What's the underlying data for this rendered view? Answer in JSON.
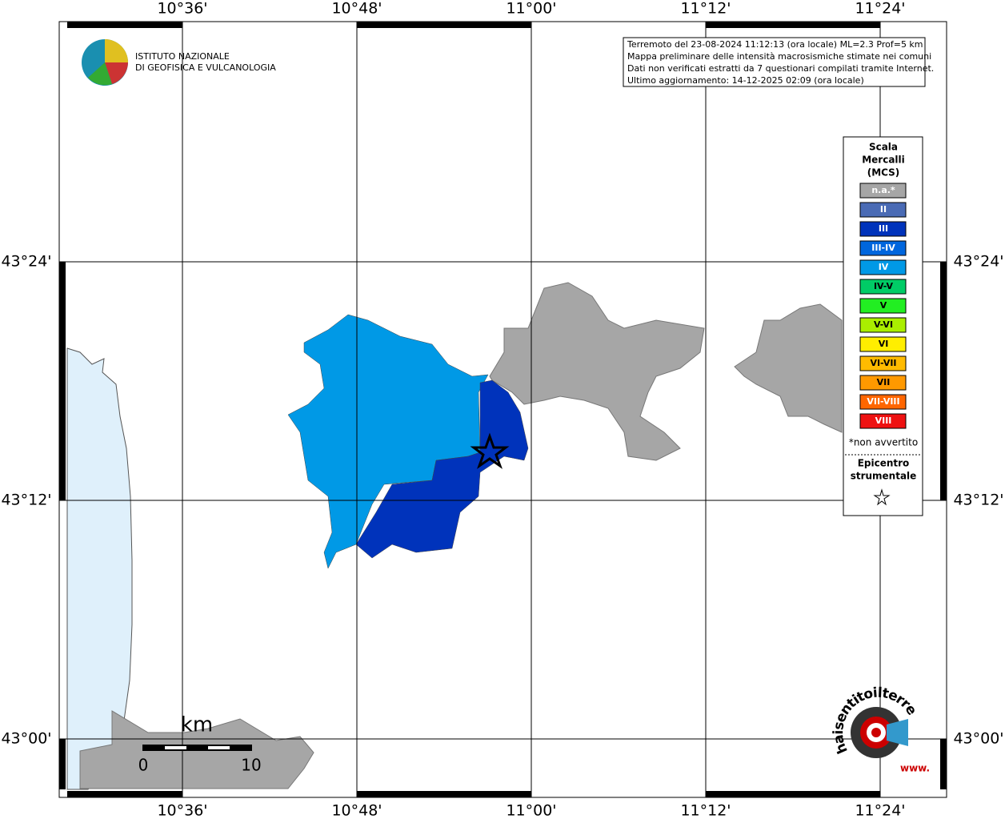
{
  "grid": {
    "lon_labels": [
      "10°36'",
      "10°48'",
      "11°00'",
      "11°12'",
      "11°24'"
    ],
    "lat_labels": [
      "43°24'",
      "43°12'",
      "43°00'"
    ]
  },
  "logo": {
    "line1": "ISTITUTO NAZIONALE",
    "line2": "DI GEOFISICA E VULCANOLOGIA"
  },
  "info": [
    "Terremoto del 23-08-2024 11:12:13 (ora locale) ML=2.3 Prof=5 km",
    "Mappa preliminare delle intensità macrosismiche stimate nei comuni",
    "Dati non verificati estratti da 7 questionari compilati tramite Internet.",
    "Ultimo aggiornamento: 14-12-2025 02:09 (ora locale)"
  ],
  "legend": {
    "title": [
      "Scala",
      "Mercalli",
      "(MCS)"
    ],
    "items": [
      {
        "label": "n.a.*",
        "color": "#a6a6a6"
      },
      {
        "label": "II",
        "color": "#4a6bb5"
      },
      {
        "label": "III",
        "color": "#0033bb"
      },
      {
        "label": "III-IV",
        "color": "#0066dd"
      },
      {
        "label": "IV",
        "color": "#0099e6"
      },
      {
        "label": "IV-V",
        "color": "#00cc66"
      },
      {
        "label": "V",
        "color": "#22ee22"
      },
      {
        "label": "V-VI",
        "color": "#aaee00"
      },
      {
        "label": "VI",
        "color": "#ffee00"
      },
      {
        "label": "VI-VII",
        "color": "#ffbb00"
      },
      {
        "label": "VII",
        "color": "#ff9900"
      },
      {
        "label": "VII-VIII",
        "color": "#ff6600"
      },
      {
        "label": "VIII",
        "color": "#ee1111"
      }
    ],
    "note": "*non avvertito",
    "epicenter": [
      "Epicentro",
      "strumentale"
    ]
  },
  "scale": {
    "unit": "km",
    "start": "0",
    "end": "10"
  },
  "badge": {
    "text": "haisentitoilterremoto.it",
    "www": "www."
  }
}
